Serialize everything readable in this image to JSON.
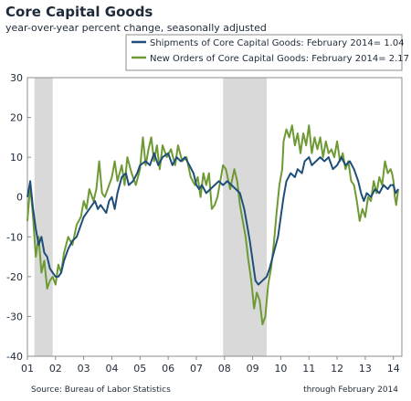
{
  "chart_data": {
    "type": "line",
    "title": "Core Capital Goods",
    "subtitle": "year-over-year percent change, seasonally adjusted",
    "xlabel": "",
    "ylabel": "",
    "ylim": [
      -40,
      30
    ],
    "yticks": [
      30,
      20,
      10,
      0,
      -10,
      -20,
      -30,
      -40
    ],
    "xlim": [
      2001,
      2014.3
    ],
    "xticks": [
      {
        "x": 2001,
        "label": "01"
      },
      {
        "x": 2002,
        "label": "02"
      },
      {
        "x": 2003,
        "label": "03"
      },
      {
        "x": 2004,
        "label": "04"
      },
      {
        "x": 2005,
        "label": "05"
      },
      {
        "x": 2006,
        "label": "06"
      },
      {
        "x": 2007,
        "label": "07"
      },
      {
        "x": 2008,
        "label": "08"
      },
      {
        "x": 2009,
        "label": "09"
      },
      {
        "x": 2010,
        "label": "10"
      },
      {
        "x": 2011,
        "label": "11"
      },
      {
        "x": 2012,
        "label": "12"
      },
      {
        "x": 2013,
        "label": "13"
      },
      {
        "x": 2014,
        "label": "14"
      }
    ],
    "grid": false,
    "legend_position": "top-right",
    "recessions": [
      {
        "start": 2001.25,
        "end": 2001.9
      },
      {
        "start": 2007.95,
        "end": 2009.5
      }
    ],
    "series": [
      {
        "name": "Shipments of Core Capital Goods: February 2014= 1.04",
        "color": "#1f4e79",
        "points": [
          [
            2001.0,
            0
          ],
          [
            2001.1,
            4
          ],
          [
            2001.2,
            -3
          ],
          [
            2001.3,
            -8
          ],
          [
            2001.4,
            -12
          ],
          [
            2001.5,
            -10
          ],
          [
            2001.6,
            -14
          ],
          [
            2001.7,
            -15
          ],
          [
            2001.8,
            -18
          ],
          [
            2001.9,
            -19
          ],
          [
            2002.0,
            -20
          ],
          [
            2002.1,
            -20
          ],
          [
            2002.2,
            -19
          ],
          [
            2002.3,
            -16
          ],
          [
            2002.45,
            -13
          ],
          [
            2002.6,
            -11
          ],
          [
            2002.75,
            -10
          ],
          [
            2002.9,
            -7
          ],
          [
            2003.0,
            -5
          ],
          [
            2003.2,
            -3
          ],
          [
            2003.4,
            -1
          ],
          [
            2003.5,
            -3
          ],
          [
            2003.6,
            -2
          ],
          [
            2003.8,
            -4
          ],
          [
            2003.9,
            -1
          ],
          [
            2004.0,
            0
          ],
          [
            2004.1,
            -3
          ],
          [
            2004.2,
            1
          ],
          [
            2004.35,
            5
          ],
          [
            2004.5,
            6
          ],
          [
            2004.6,
            3
          ],
          [
            2004.75,
            4
          ],
          [
            2004.9,
            6
          ],
          [
            2005.0,
            8
          ],
          [
            2005.2,
            9
          ],
          [
            2005.35,
            8
          ],
          [
            2005.5,
            11
          ],
          [
            2005.65,
            8
          ],
          [
            2005.8,
            10
          ],
          [
            2006.0,
            11
          ],
          [
            2006.15,
            8
          ],
          [
            2006.3,
            10
          ],
          [
            2006.45,
            9
          ],
          [
            2006.6,
            10
          ],
          [
            2006.75,
            8
          ],
          [
            2006.9,
            6
          ],
          [
            2007.0,
            3
          ],
          [
            2007.1,
            2
          ],
          [
            2007.2,
            3
          ],
          [
            2007.35,
            1
          ],
          [
            2007.5,
            2
          ],
          [
            2007.65,
            3
          ],
          [
            2007.8,
            4
          ],
          [
            2007.95,
            3
          ],
          [
            2008.1,
            4
          ],
          [
            2008.25,
            3
          ],
          [
            2008.4,
            2
          ],
          [
            2008.55,
            1
          ],
          [
            2008.7,
            -3
          ],
          [
            2008.8,
            -7
          ],
          [
            2008.9,
            -11
          ],
          [
            2009.0,
            -16
          ],
          [
            2009.1,
            -21
          ],
          [
            2009.2,
            -22
          ],
          [
            2009.35,
            -21
          ],
          [
            2009.5,
            -20
          ],
          [
            2009.6,
            -18
          ],
          [
            2009.75,
            -14
          ],
          [
            2009.9,
            -10
          ],
          [
            2010.0,
            -5
          ],
          [
            2010.1,
            0
          ],
          [
            2010.2,
            4
          ],
          [
            2010.35,
            6
          ],
          [
            2010.5,
            5
          ],
          [
            2010.6,
            7
          ],
          [
            2010.75,
            6
          ],
          [
            2010.85,
            9
          ],
          [
            2011.0,
            10
          ],
          [
            2011.1,
            8
          ],
          [
            2011.25,
            9
          ],
          [
            2011.4,
            10
          ],
          [
            2011.55,
            9
          ],
          [
            2011.7,
            10
          ],
          [
            2011.85,
            7
          ],
          [
            2012.0,
            8
          ],
          [
            2012.15,
            10
          ],
          [
            2012.3,
            8
          ],
          [
            2012.45,
            9
          ],
          [
            2012.6,
            7
          ],
          [
            2012.75,
            4
          ],
          [
            2012.85,
            1
          ],
          [
            2012.95,
            -1
          ],
          [
            2013.05,
            1
          ],
          [
            2013.2,
            0
          ],
          [
            2013.35,
            2
          ],
          [
            2013.5,
            1
          ],
          [
            2013.65,
            3
          ],
          [
            2013.8,
            2
          ],
          [
            2013.9,
            3
          ],
          [
            2014.0,
            3
          ],
          [
            2014.08,
            1
          ],
          [
            2014.17,
            2
          ]
        ]
      },
      {
        "name": "New Orders of Core Capital Goods: February 2014= 2.17",
        "color": "#6e9a34",
        "points": [
          [
            2001.0,
            -6
          ],
          [
            2001.1,
            3
          ],
          [
            2001.2,
            -5
          ],
          [
            2001.3,
            -15
          ],
          [
            2001.4,
            -10
          ],
          [
            2001.5,
            -19
          ],
          [
            2001.6,
            -16
          ],
          [
            2001.7,
            -23
          ],
          [
            2001.8,
            -21
          ],
          [
            2001.9,
            -20
          ],
          [
            2002.0,
            -22
          ],
          [
            2002.1,
            -17
          ],
          [
            2002.2,
            -19
          ],
          [
            2002.3,
            -14
          ],
          [
            2002.45,
            -10
          ],
          [
            2002.6,
            -12
          ],
          [
            2002.75,
            -7
          ],
          [
            2002.9,
            -5
          ],
          [
            2003.0,
            -1
          ],
          [
            2003.1,
            -3
          ],
          [
            2003.2,
            2
          ],
          [
            2003.35,
            -1
          ],
          [
            2003.45,
            2
          ],
          [
            2003.55,
            9
          ],
          [
            2003.65,
            1
          ],
          [
            2003.75,
            0
          ],
          [
            2003.85,
            2
          ],
          [
            2004.0,
            5
          ],
          [
            2004.1,
            9
          ],
          [
            2004.2,
            4
          ],
          [
            2004.35,
            8
          ],
          [
            2004.45,
            3
          ],
          [
            2004.55,
            10
          ],
          [
            2004.7,
            6
          ],
          [
            2004.85,
            3
          ],
          [
            2005.0,
            7
          ],
          [
            2005.1,
            15
          ],
          [
            2005.2,
            8
          ],
          [
            2005.3,
            12
          ],
          [
            2005.4,
            15
          ],
          [
            2005.5,
            9
          ],
          [
            2005.6,
            13
          ],
          [
            2005.7,
            7
          ],
          [
            2005.8,
            13
          ],
          [
            2005.95,
            10
          ],
          [
            2006.1,
            12
          ],
          [
            2006.25,
            8
          ],
          [
            2006.35,
            13
          ],
          [
            2006.5,
            9
          ],
          [
            2006.65,
            10
          ],
          [
            2006.8,
            5
          ],
          [
            2006.95,
            3
          ],
          [
            2007.05,
            5
          ],
          [
            2007.15,
            0
          ],
          [
            2007.25,
            6
          ],
          [
            2007.35,
            3
          ],
          [
            2007.45,
            6
          ],
          [
            2007.55,
            -3
          ],
          [
            2007.65,
            -2
          ],
          [
            2007.75,
            0
          ],
          [
            2007.85,
            4
          ],
          [
            2007.95,
            8
          ],
          [
            2008.05,
            7
          ],
          [
            2008.2,
            2
          ],
          [
            2008.35,
            7
          ],
          [
            2008.45,
            4
          ],
          [
            2008.55,
            -2
          ],
          [
            2008.65,
            -6
          ],
          [
            2008.75,
            -10
          ],
          [
            2008.85,
            -16
          ],
          [
            2008.95,
            -21
          ],
          [
            2009.05,
            -28
          ],
          [
            2009.15,
            -24
          ],
          [
            2009.25,
            -26
          ],
          [
            2009.35,
            -32
          ],
          [
            2009.45,
            -30
          ],
          [
            2009.55,
            -22
          ],
          [
            2009.65,
            -18
          ],
          [
            2009.75,
            -12
          ],
          [
            2009.85,
            -4
          ],
          [
            2009.95,
            3
          ],
          [
            2010.05,
            7
          ],
          [
            2010.1,
            14
          ],
          [
            2010.2,
            17
          ],
          [
            2010.3,
            15
          ],
          [
            2010.4,
            18
          ],
          [
            2010.5,
            13
          ],
          [
            2010.6,
            16
          ],
          [
            2010.7,
            11
          ],
          [
            2010.8,
            16
          ],
          [
            2010.9,
            13
          ],
          [
            2011.0,
            18
          ],
          [
            2011.1,
            11
          ],
          [
            2011.2,
            15
          ],
          [
            2011.3,
            12
          ],
          [
            2011.4,
            15
          ],
          [
            2011.5,
            10
          ],
          [
            2011.6,
            14
          ],
          [
            2011.7,
            11
          ],
          [
            2011.8,
            12
          ],
          [
            2011.9,
            10
          ],
          [
            2012.0,
            14
          ],
          [
            2012.1,
            9
          ],
          [
            2012.2,
            11
          ],
          [
            2012.3,
            7
          ],
          [
            2012.4,
            9
          ],
          [
            2012.5,
            4
          ],
          [
            2012.6,
            3
          ],
          [
            2012.7,
            -1
          ],
          [
            2012.8,
            -6
          ],
          [
            2012.9,
            -3
          ],
          [
            2013.0,
            -5
          ],
          [
            2013.1,
            0
          ],
          [
            2013.2,
            -1
          ],
          [
            2013.3,
            4
          ],
          [
            2013.4,
            1
          ],
          [
            2013.5,
            5
          ],
          [
            2013.6,
            3
          ],
          [
            2013.7,
            9
          ],
          [
            2013.8,
            6
          ],
          [
            2013.9,
            7
          ],
          [
            2013.95,
            6
          ],
          [
            2014.0,
            4
          ],
          [
            2014.05,
            0
          ],
          [
            2014.1,
            -2
          ],
          [
            2014.17,
            2
          ]
        ]
      }
    ]
  },
  "source": "Source: Bureau of Labor Statistics",
  "through": "through February 2014"
}
